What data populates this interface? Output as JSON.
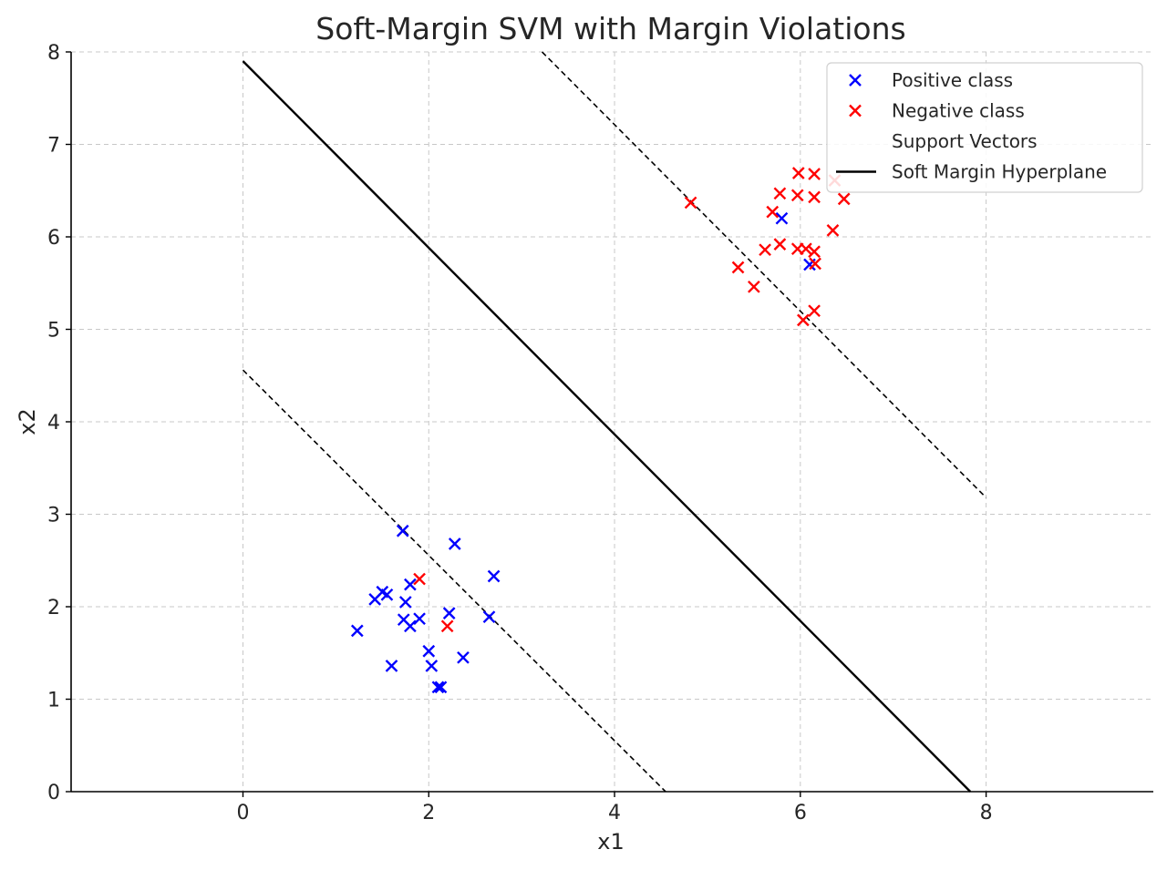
{
  "chart_data": {
    "type": "scatter",
    "title": "Soft-Margin SVM with Margin Violations",
    "xlabel": "x1",
    "ylabel": "x2",
    "xlim": [
      -1.85,
      9.8
    ],
    "ylim": [
      0,
      8
    ],
    "xticks": [
      "0",
      "2",
      "4",
      "6",
      "8"
    ],
    "xtick_values": [
      0,
      2,
      4,
      6,
      8
    ],
    "yticks": [
      "0",
      "1",
      "2",
      "3",
      "4",
      "5",
      "6",
      "7",
      "8"
    ],
    "ytick_values": [
      0,
      1,
      2,
      3,
      4,
      5,
      6,
      7,
      8
    ],
    "grid": true,
    "legend_position": "top-right",
    "legend": [
      {
        "label": "Positive class",
        "marker": "x",
        "color": "#0000ff"
      },
      {
        "label": "Negative class",
        "marker": "x",
        "color": "#ff0000"
      },
      {
        "label": "Support Vectors",
        "marker": "none",
        "color": "#ffffff"
      },
      {
        "label": "Soft Margin Hyperplane",
        "marker": "line",
        "color": "#000000"
      }
    ],
    "series": [
      {
        "name": "Positive class",
        "color": "#0000ff",
        "points": [
          [
            1.72,
            2.82
          ],
          [
            2.28,
            2.68
          ],
          [
            2.7,
            2.33
          ],
          [
            1.8,
            2.24
          ],
          [
            1.5,
            2.16
          ],
          [
            1.55,
            2.13
          ],
          [
            1.42,
            2.08
          ],
          [
            1.75,
            2.05
          ],
          [
            2.22,
            1.93
          ],
          [
            1.9,
            1.87
          ],
          [
            1.73,
            1.86
          ],
          [
            2.65,
            1.89
          ],
          [
            1.8,
            1.79
          ],
          [
            1.23,
            1.74
          ],
          [
            2.0,
            1.52
          ],
          [
            2.37,
            1.45
          ],
          [
            1.6,
            1.36
          ],
          [
            2.03,
            1.36
          ],
          [
            2.1,
            1.13
          ],
          [
            2.13,
            1.13
          ],
          [
            5.8,
            6.2
          ],
          [
            6.1,
            5.7
          ]
        ]
      },
      {
        "name": "Negative class",
        "color": "#ff0000",
        "points": [
          [
            1.9,
            2.3
          ],
          [
            2.2,
            1.79
          ],
          [
            4.82,
            6.37
          ],
          [
            5.98,
            6.69
          ],
          [
            6.15,
            6.68
          ],
          [
            6.37,
            6.61
          ],
          [
            5.78,
            6.47
          ],
          [
            5.97,
            6.45
          ],
          [
            6.15,
            6.43
          ],
          [
            6.47,
            6.41
          ],
          [
            5.7,
            6.27
          ],
          [
            6.35,
            6.07
          ],
          [
            5.62,
            5.86
          ],
          [
            5.78,
            5.92
          ],
          [
            5.97,
            5.87
          ],
          [
            6.06,
            5.87
          ],
          [
            6.15,
            5.84
          ],
          [
            6.16,
            5.71
          ],
          [
            5.33,
            5.67
          ],
          [
            5.5,
            5.46
          ],
          [
            6.15,
            5.2
          ],
          [
            6.03,
            5.1
          ]
        ]
      }
    ],
    "lines": [
      {
        "name": "Soft Margin Hyperplane",
        "style": "solid",
        "color": "#000000",
        "x": [
          0,
          7.83
        ],
        "y": [
          7.9,
          0
        ]
      },
      {
        "name": "upper margin",
        "style": "dashed",
        "color": "#000000",
        "x": [
          3.22,
          8.0
        ],
        "y": [
          8.0,
          3.18
        ]
      },
      {
        "name": "lower margin",
        "style": "dashed",
        "color": "#000000",
        "x": [
          0,
          4.55
        ],
        "y": [
          4.56,
          0
        ]
      }
    ]
  }
}
